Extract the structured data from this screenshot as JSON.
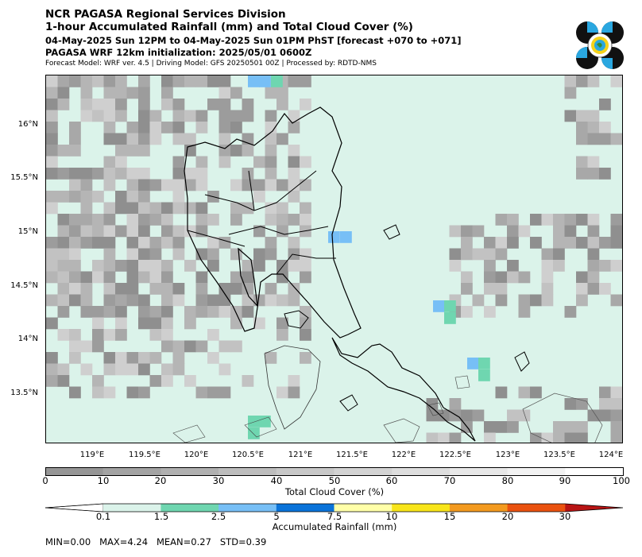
{
  "header": {
    "title_line1": "NCR PAGASA Regional Services Division",
    "title_line2": "1-hour Accumulated Rainfall (mm) and Total Cloud Cover (%)",
    "valid_time": "04-May-2025 Sun 12PM to 04-May-2025 Sun 01PM PhST [forecast +070 to +071]",
    "init_line": "PAGASA WRF 12km initialization: 2025/05/01 0600Z",
    "model_line": "Forecast Model: WRF ver. 4.5 | Driving Model: GFS 20250501 00Z | Processed by: RDTD-NMS"
  },
  "map": {
    "lat_labels": [
      "16°N",
      "15.5°N",
      "15°N",
      "14.5°N",
      "14°N",
      "13.5°N"
    ],
    "lat_values": [
      16,
      15.5,
      15,
      14.5,
      14,
      13.5
    ],
    "lon_labels": [
      "119°E",
      "119.5°E",
      "120°E",
      "120.5°E",
      "121°E",
      "121.5°E",
      "122°E",
      "122.5°E",
      "123°E",
      "123.5°E",
      "124°E"
    ],
    "lon_values": [
      119,
      119.5,
      120,
      120.5,
      121,
      121.5,
      122,
      122.5,
      123,
      123.5,
      124
    ],
    "lon_range": [
      118.65,
      124.05
    ],
    "lat_range": [
      13.05,
      16.47
    ],
    "ocean_color": "#dbf3ea"
  },
  "cloud_bar": {
    "ticks": [
      "0",
      "10",
      "20",
      "30",
      "40",
      "50",
      "60",
      "70",
      "80",
      "90",
      "100"
    ],
    "label": "Total Cloud Cover (%)",
    "colors": [
      "#969696",
      "#a3a3a3",
      "#b0b0b0",
      "#bdbdbd",
      "#c8c8c8",
      "#d3d3d3",
      "#dedede",
      "#e8e8e8",
      "#f2f2f2",
      "#ffffff"
    ]
  },
  "rain_bar": {
    "ticks": [
      "0.1",
      "1.5",
      "2.5",
      "5",
      "7.5",
      "10",
      "15",
      "20",
      "30"
    ],
    "label": "Accumulated Rainfall (mm)",
    "colors": [
      "#ffffff",
      "#dbf3ea",
      "#6fd6b0",
      "#77bff6",
      "#0a73d9",
      "#ffffa8",
      "#f8e51a",
      "#f39a1f",
      "#ea5210",
      "#b81414"
    ]
  },
  "stats": "MIN=0.00   MAX=4.24   MEAN=0.27   STD=0.39"
}
